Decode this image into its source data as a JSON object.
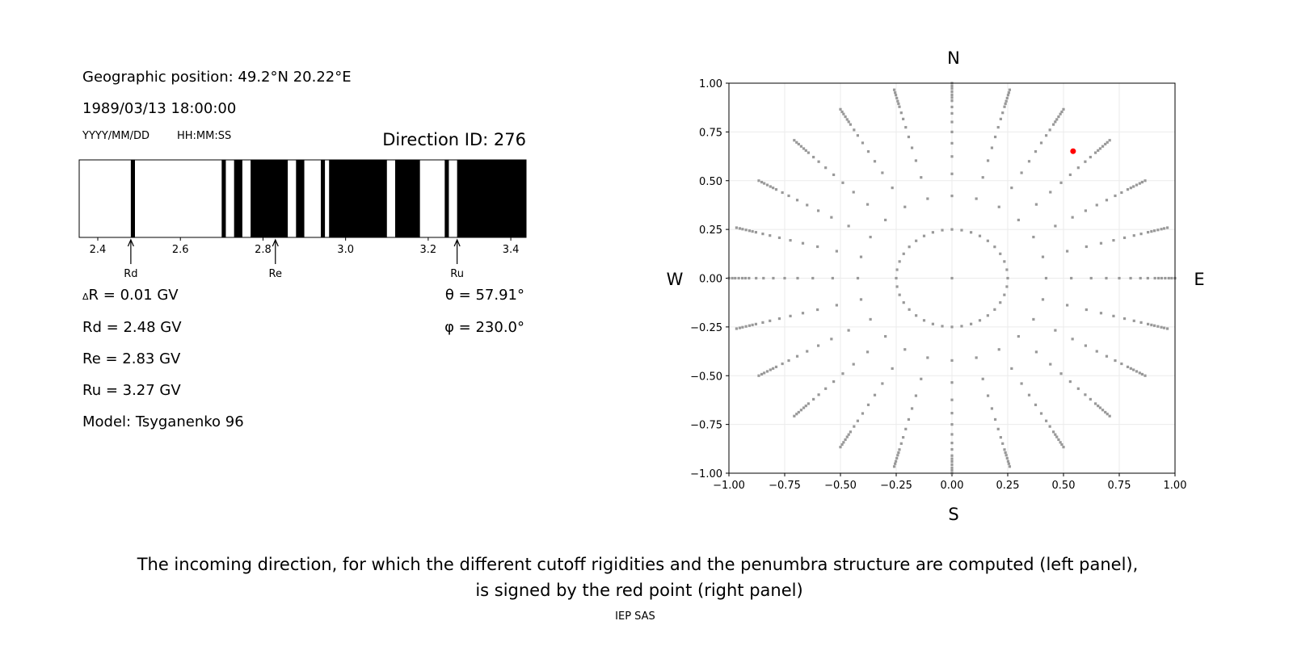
{
  "info": {
    "geo_position": "Geographic position: 49.2°N 20.22°E",
    "datetime": "1989/03/13 18:00:00",
    "date_format": "YYYY/MM/DD",
    "time_format": "HH:MM:SS",
    "direction_id": "Direction ID: 276",
    "delta_r_symbol": "Δ",
    "delta_r": "R = 0.01 GV",
    "rd": "Rd = 2.48 GV",
    "re": "Re = 2.83 GV",
    "ru": "Ru = 3.27 GV",
    "model": "Model: Tsyganenko 96",
    "theta": "θ = 57.91°",
    "phi": "φ = 230.0°"
  },
  "caption": {
    "line1": "The incoming direction, for which the different cutoff rigidities and the penumbra structure are computed (left panel),",
    "line2": "is signed by the red point (right panel)",
    "credit": "IEP SAS"
  },
  "chart_data": [
    {
      "type": "bar",
      "subtype": "penumbra-strip",
      "xlabel": "",
      "xlim": [
        2.355,
        3.437
      ],
      "xticks": [
        "2.4",
        "2.6",
        "2.8",
        "3.0",
        "3.2",
        "3.4"
      ],
      "forbidden_intervals": [
        [
          2.48,
          2.49
        ],
        [
          2.7,
          2.71
        ],
        [
          2.73,
          2.75
        ],
        [
          2.77,
          2.86
        ],
        [
          2.88,
          2.9
        ],
        [
          2.94,
          2.95
        ],
        [
          2.96,
          3.1
        ],
        [
          3.12,
          3.18
        ],
        [
          3.24,
          3.25
        ],
        [
          3.27,
          3.437
        ]
      ],
      "colors": {
        "forbidden": "#000000",
        "allowed": "#ffffff"
      },
      "markers": [
        {
          "label": "Rd",
          "value": 2.48
        },
        {
          "label": "Re",
          "value": 2.83
        },
        {
          "label": "Ru",
          "value": 3.27
        }
      ]
    },
    {
      "type": "scatter",
      "xlim": [
        -1.0,
        1.0
      ],
      "ylim": [
        -1.0,
        1.0
      ],
      "xticks": [
        "−1.00",
        "−0.75",
        "−0.50",
        "−0.25",
        "0.00",
        "0.25",
        "0.50",
        "0.75",
        "1.00"
      ],
      "yticks": [
        "−1.00",
        "−0.75",
        "−0.50",
        "−0.25",
        "0.00",
        "0.25",
        "0.50",
        "0.75",
        "1.00"
      ],
      "grid": true,
      "compass": {
        "top": "N",
        "bottom": "S",
        "left": "W",
        "right": "E"
      },
      "grid_rings": [
        {
          "r": 0.0,
          "n": 1
        },
        {
          "r": 0.25,
          "n": 36
        },
        {
          "r": 0.422,
          "n": 24
        },
        {
          "r": 0.535,
          "n": 24
        },
        {
          "r": 0.624,
          "n": 24
        },
        {
          "r": 0.692,
          "n": 24
        },
        {
          "r": 0.75,
          "n": 24
        },
        {
          "r": 0.801,
          "n": 24
        },
        {
          "r": 0.845,
          "n": 24
        },
        {
          "r": 0.878,
          "n": 24
        },
        {
          "r": 0.91,
          "n": 24
        },
        {
          "r": 0.926,
          "n": 24
        },
        {
          "r": 0.94,
          "n": 24
        },
        {
          "r": 0.956,
          "n": 24
        },
        {
          "r": 0.972,
          "n": 24
        },
        {
          "r": 0.985,
          "n": 24
        },
        {
          "r": 1.0,
          "n": 24
        }
      ],
      "highlight_point": {
        "x": 0.543,
        "y": 0.651
      },
      "colors": {
        "points": "#999999",
        "highlight": "#ff0000"
      }
    }
  ]
}
